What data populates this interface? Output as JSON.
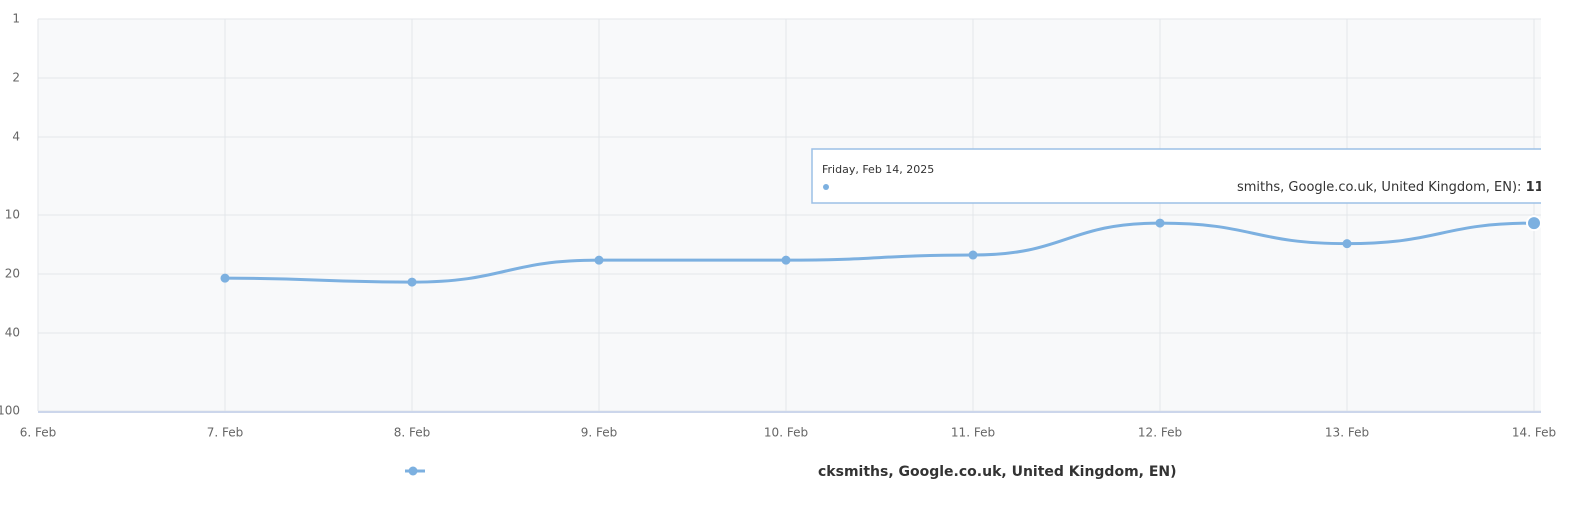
{
  "chart_data": {
    "type": "line",
    "categories": [
      "6. Feb",
      "7. Feb",
      "8. Feb",
      "9. Feb",
      "10. Feb",
      "11. Feb",
      "12. Feb",
      "13. Feb",
      "14. Feb"
    ],
    "series": [
      {
        "name": "cksmiths, Google.co.uk, United Kingdom, EN)",
        "color": "#7cb0e0",
        "values": [
          null,
          21,
          22,
          17,
          17,
          16,
          11,
          14,
          11
        ]
      }
    ],
    "ylim": [
      1,
      100
    ],
    "yticks": [
      1,
      2,
      4,
      10,
      20,
      40,
      100
    ],
    "log_scale": true,
    "reversed": true,
    "grid": true,
    "tooltip": {
      "date": "Friday, Feb 14, 2025",
      "label": "smiths, Google.co.uk, United Kingdom, EN):"
    }
  }
}
